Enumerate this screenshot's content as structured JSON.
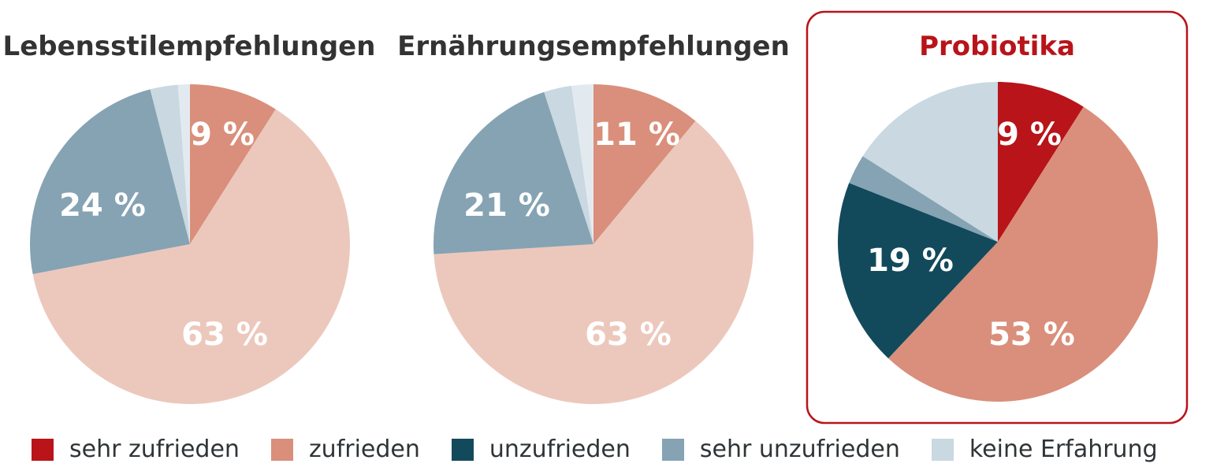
{
  "colors": {
    "sehr_zufrieden": "#b81419",
    "zufrieden": "#d98f7b",
    "zufrieden_light": "#ecc8bc",
    "unzufrieden": "#124a5c",
    "sehr_unzufrieden": "#85a3b3",
    "keine_erfahrung": "#c9d8e1",
    "keine_erfahrung_light": "#e3eaef",
    "title_dark": "#333333",
    "highlight": "#b81419"
  },
  "legend": [
    {
      "label": "sehr zufrieden",
      "color": "#b81419"
    },
    {
      "label": "zufrieden",
      "color": "#d98f7b"
    },
    {
      "label": "unzufrieden",
      "color": "#124a5c"
    },
    {
      "label": "sehr unzufrieden",
      "color": "#85a3b3"
    },
    {
      "label": "keine Erfahrung",
      "color": "#c9d8e1"
    }
  ],
  "chart_data": [
    {
      "type": "pie",
      "title": "Lebensstilempfehlungen",
      "highlighted": false,
      "slices": [
        {
          "category": "zufrieden",
          "value": 9,
          "label": "9 %",
          "color": "#d98f7b"
        },
        {
          "category": "zufrieden",
          "value": 63,
          "label": "63 %",
          "color": "#ecc8bc"
        },
        {
          "category": "sehr unzufrieden",
          "value": 24,
          "label": "24 %",
          "color": "#85a3b3"
        },
        {
          "category": "keine Erfahrung",
          "value": 2.8,
          "label": "",
          "color": "#c9d8e1"
        },
        {
          "category": "keine Erfahrung",
          "value": 1.2,
          "label": "",
          "color": "#e3eaef"
        }
      ]
    },
    {
      "type": "pie",
      "title": "Ernährungsempfehlungen",
      "highlighted": false,
      "slices": [
        {
          "category": "zufrieden",
          "value": 11,
          "label": "11 %",
          "color": "#d98f7b"
        },
        {
          "category": "zufrieden",
          "value": 63,
          "label": "63 %",
          "color": "#ecc8bc"
        },
        {
          "category": "sehr unzufrieden",
          "value": 21,
          "label": "21 %",
          "color": "#85a3b3"
        },
        {
          "category": "keine Erfahrung",
          "value": 2.8,
          "label": "",
          "color": "#c9d8e1"
        },
        {
          "category": "keine Erfahrung",
          "value": 2.2,
          "label": "",
          "color": "#e3eaef"
        }
      ]
    },
    {
      "type": "pie",
      "title": "Probiotika",
      "highlighted": true,
      "slices": [
        {
          "category": "sehr zufrieden",
          "value": 9,
          "label": "9 %",
          "color": "#b81419"
        },
        {
          "category": "zufrieden",
          "value": 53,
          "label": "53 %",
          "color": "#d98f7b"
        },
        {
          "category": "unzufrieden",
          "value": 19,
          "label": "19 %",
          "color": "#124a5c"
        },
        {
          "category": "sehr unzufrieden",
          "value": 3,
          "label": "",
          "color": "#85a3b3"
        },
        {
          "category": "keine Erfahrung",
          "value": 16,
          "label": "",
          "color": "#c9d8e1"
        }
      ]
    }
  ]
}
